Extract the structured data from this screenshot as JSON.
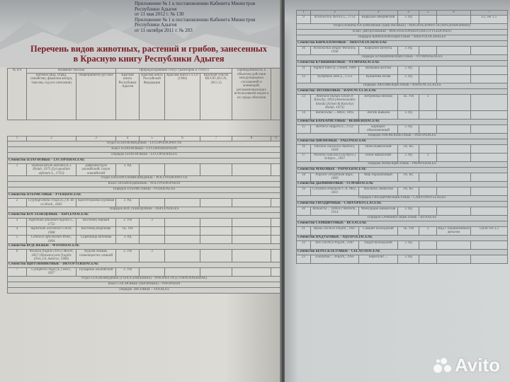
{
  "left_page": {
    "caption_lines": [
      "Приложение № 1 к постановлению Кабинета Министров Республики Адыгея",
      "от 11 мая 2012 г. № 130",
      "Приложение № 1 к постановлению Кабинета Министров Республики Адыгея",
      "от 11 октября 2011 г. № 203"
    ],
    "title_line1": "Перечень видов животных, растений и грибов, занесенных",
    "title_line2": "в Красную книгу Республики Адыгея",
    "header": {
      "num": "№ п/п",
      "taxon": "Название таксона",
      "latin": "научное (вид, отряд, семейство, фамилия автора, таксона, год его описания)",
      "russian": "общепринятое русское",
      "status": "Природоохранный статус (категория и статус)",
      "rb_adygea": "Красная книга Республики Адыгея",
      "rb_rf": "Красная книга Российской Федерации",
      "rb_ussr": "Красная книга СССР (1984)",
      "iucn": "Красный список МСОП (IUCN, 2011.2)",
      "intl": "Принадлежность к объектам действия международных соглашений и конвенций, регламентирующих использование видов и их среды обитания",
      "col_numbers": [
        "1",
        "2",
        "3",
        "4",
        "5",
        "6",
        "7",
        "8",
        "9"
      ]
    },
    "rows": [
      {
        "type": "section",
        "text": "Отдел ПЛАУНОВИДНЫЕ - LYCOPODIOPHYTA"
      },
      {
        "type": "section",
        "text": "Класс ПЛАУНОВЫЕ - LYCOPODIOPSIDA"
      },
      {
        "type": "section",
        "text": "Порядок ПЛАУНОВЫЕ - LYCOPODIALES"
      },
      {
        "type": "family",
        "text": "Семейство ПЛАУНОВЫЕ - LYCOPODIACEAE"
      },
      {
        "type": "data",
        "cells": [
          "1",
          "Diphasiastrum alpinum (L.) Holub, 1975 (Lycopodium alpinum L., 1753)",
          "Дифазиаструм альпийский, плаун альпийский",
          "3. РД",
          "",
          "",
          "",
          "",
          ""
        ]
      },
      {
        "type": "section",
        "text": "Отдел ПАПОРОТНИКОВИДНЫЕ - POLYPODIOPHYTA"
      },
      {
        "type": "section",
        "text": "Класс ПОЛИПОДИЕВЫЕ - POLYPODIOPSIDA"
      },
      {
        "type": "section",
        "text": "Порядок ПТЕРИСОВЫЕ - PTERIDALES"
      },
      {
        "type": "family",
        "text": "Семейство ПТЕРИСОВЫЕ - PTERIDACEAE"
      },
      {
        "type": "data",
        "cells": [
          "2",
          "Cryptogramma crispa (L.) R. Br. ex Hook., 1842",
          "Криптограмма курчавая",
          "3. РД",
          "",
          "",
          "",
          "",
          ""
        ]
      },
      {
        "type": "section",
        "text": "Порядок КОСТЕНЕЦОВЫЕ - ASPLENIALES"
      },
      {
        "type": "family",
        "text": "Семейство КОСТЕНЕЦОВЫЕ - ASPLENIACEAE"
      },
      {
        "type": "data",
        "cells": [
          "3",
          "Asplenium adiantum-nigrum L., 1753",
          "Костенец черный",
          "2. УВ",
          "3",
          "",
          "",
          "",
          ""
        ]
      },
      {
        "type": "data",
        "cells": [
          "4",
          "Asplenium woronowii Christ, 1908",
          "Костенец Воронова",
          "1Б. УИ",
          "",
          "",
          "",
          "",
          ""
        ]
      },
      {
        "type": "data",
        "cells": [
          "5",
          "Ceterach officinarum Willd., 1804",
          "Скребница аптечная",
          "3. РД",
          "",
          "",
          "",
          "",
          ""
        ]
      },
      {
        "type": "family",
        "text": "Семейство ВУДСИЕВЫЕ - WOODSIACEAE"
      },
      {
        "type": "data",
        "cells": [
          "6",
          "Woodsia fragilis (Trev.) Moore, 1857 (Hymenocystis fragilis (Trev.) A. Askerov, 1986)",
          "Вудсия ломкая, гименоцистис ломкий",
          "2. УВ",
          "3",
          "",
          "",
          "",
          ""
        ]
      },
      {
        "type": "family",
        "text": "Семейство ЩИТОВНИКОВЫЕ - DRYOPTERIDACEAE"
      },
      {
        "type": "data",
        "cells": [
          "7",
          "Cystopteris regia (L.) Desv., 1827",
          "Пузырник альпийский",
          "2. УВ",
          "",
          "",
          "",
          "",
          ""
        ]
      },
      {
        "type": "section",
        "text": "Отдел СОСНОВИДНЫЕ (ГОЛОСЕМЕННЫЕ) - PINOPHYTA (GYMNOSPERMAE)"
      },
      {
        "type": "section",
        "text": "Класс СОСНОВЫЕ (ХВОЙНЫЕ) - PINOPSIDA"
      },
      {
        "type": "section",
        "text": "Порядок ТИСОВЫЕ - TAXALES"
      }
    ]
  },
  "right_page": {
    "col_numbers": [
      "1",
      "2",
      "3",
      "4",
      "5",
      "6",
      "7"
    ],
    "rows": [
      {
        "type": "data",
        "cells": [
          "9",
          "Aristolochia iberica L., 1753",
          "Кирказон иберийский",
          "3. РД",
          "",
          "",
          "LC ver 3.1"
        ]
      },
      {
        "type": "section",
        "text": "Отдел ПОКРЫТОСЕМЕННЫЕ (ЦВЕТКОВЫЕ) - MAGNOLIOPHYTA (ANGIOSPERMAE)"
      },
      {
        "type": "section",
        "text": "Класс ДВУДОЛЬНЫЕ - MAGNOLIOPSIDA (DICOTYLEDONES)"
      },
      {
        "type": "section",
        "text": "Порядок КИРКАЗОНОЦВЕТНЫЕ - ARISTOLOCHIALES"
      },
      {
        "type": "family",
        "text": "Семейство КИРКАЗОНОВЫЕ - ARISTOLOCHIACEAE"
      },
      {
        "type": "data",
        "cells": [
          "10",
          "Aristolochia steupii Woronow, 1936",
          "Кирказон Штеупа",
          "3. РД",
          "",
          "",
          ""
        ]
      },
      {
        "type": "section",
        "text": "Порядок КУВШИНКОЦВЕТНЫЕ - NYMPHAEALES"
      },
      {
        "type": "family",
        "text": "Семейство КУВШИНКОВЫЕ - NYMPHAEACEAE"
      },
      {
        "type": "data",
        "cells": [
          "11",
          "Nuphar lutea (L.) Smith, 1809",
          "Кубышка желтая",
          "3. РД",
          "",
          "",
          ""
        ]
      },
      {
        "type": "data",
        "cells": [
          "12",
          "Nymphaea alba L., 1753",
          "Кувшинка белая",
          "3. РД",
          "",
          "",
          ""
        ]
      },
      {
        "type": "section",
        "text": "Порядок ЛЮТИКОЦВЕТНЫЕ - RANUNCULALES"
      },
      {
        "type": "family",
        "text": "Семейство ЛЮТИКОВЫЕ - RANUNCULACEAE"
      },
      {
        "type": "data",
        "cells": [
          "13",
          "Anemone blanda Schott et Kotschy, 1854 (Anemonoides blanda (Schott & Kotschy) Holub, 1973)",
          "Ветреница нежная",
          "1Б. УИ",
          "3",
          "",
          ""
        ]
      },
      {
        "type": "data",
        "cells": [
          "14",
          "Ranunculus ... Albov, 1895",
          "Лютик Кавказа",
          "3. РД",
          "",
          "",
          ""
        ]
      },
      {
        "type": "family",
        "text": "Семейство БАРБАРИСОВЫЕ - BERBERIDACEAE"
      },
      {
        "type": "data",
        "cells": [
          "15",
          "Berberis vulgaris L., 1753",
          "Барбарис обыкновенный",
          "3. РД",
          "",
          "",
          ""
        ]
      },
      {
        "type": "section",
        "text": "Порядок ПИОНОЦВЕТНЫЕ - PAEONIALES"
      },
      {
        "type": "family",
        "text": "Семейство ПИОНОВЫЕ - PAEONIACEAE"
      },
      {
        "type": "data",
        "cells": [
          "16",
          "Paeonia caucasica Andrews, 1818",
          "Пион Кавказский",
          "1А. КС",
          "",
          "",
          ""
        ]
      },
      {
        "type": "data",
        "cells": [
          "17",
          "Paeonia caucasica (Schipcz.) Schipcz., 1937",
          "Пион кавказский",
          "3. РД",
          "3",
          "",
          ""
        ]
      },
      {
        "type": "section",
        "text": "Порядок МАКОЦВЕТНЫЕ - PAPAVERALES"
      },
      {
        "type": "family",
        "text": "Семейство МАКОВЫЕ - PAPAVERACEAE"
      },
      {
        "type": "data",
        "cells": [
          "18",
          "Papaver oreophilum Rupr., 1869",
          "Мак горолюбивый",
          "1А. КС",
          "",
          "",
          ""
        ]
      },
      {
        "type": "family",
        "text": "Семейство ДЫМЯНКОВЫЕ - FUMARIACEAE"
      },
      {
        "type": "data",
        "cells": [
          "19",
          "Corydalis emanuelii C.A. Mey., 1831",
          "Хохлатка Эмануэля",
          "1А. КС",
          "",
          "",
          ""
        ]
      },
      {
        "type": "section",
        "text": "Порядок ГВОЗДИЧНОЦВЕТНЫЕ - CARYOPHYLLALES"
      },
      {
        "type": "family",
        "text": "Семейство ГВОЗДИЧНЫЕ - CARYOPHYLLACEAE"
      },
      {
        "type": "data",
        "cells": [
          "20",
          "Minuartia ... (Albov) Wahlenb., 1914",
          "Минуарция кавказская",
          "3. РД",
          "",
          "",
          ""
        ]
      },
      {
        "type": "section",
        "text": "Порядок САМШИТОЦВЕТНЫЕ - BUXALES"
      },
      {
        "type": "family",
        "text": "Семейство САМШИТОВЫЕ - BUXACEAE"
      },
      {
        "type": "data",
        "cells": [
          "21",
          "Buxus colchica Pojark., 1947",
          "Самшит колхидский",
          "1Б. УИ",
          "3",
          "Вид с ограниченным ареалом",
          "LR/nt ver 2.3"
        ]
      },
      {
        "type": "family",
        "text": "Семейство ПАДУБОВЫЕ - AQUIFOLIACEAE"
      },
      {
        "type": "data",
        "cells": [
          "22",
          "Ilex colchica Pojark., 1947",
          "Падуб колхидский",
          "3. РД",
          "",
          "",
          ""
        ]
      },
      {
        "type": "family",
        "text": "Семейство БЕРЕСКЛЕТОВЫЕ - CELASTRACEAE"
      },
      {
        "type": "data",
        "cells": [
          "23",
          "Euonymus ... Pojark., 1956",
          "Бересклет ...",
          "3. РД",
          "",
          "",
          ""
        ]
      }
    ]
  },
  "watermark": "Avito",
  "colors": {
    "title": "#7a1e24",
    "paper": "#d8d6d0",
    "grid": "#7a7c7c"
  }
}
